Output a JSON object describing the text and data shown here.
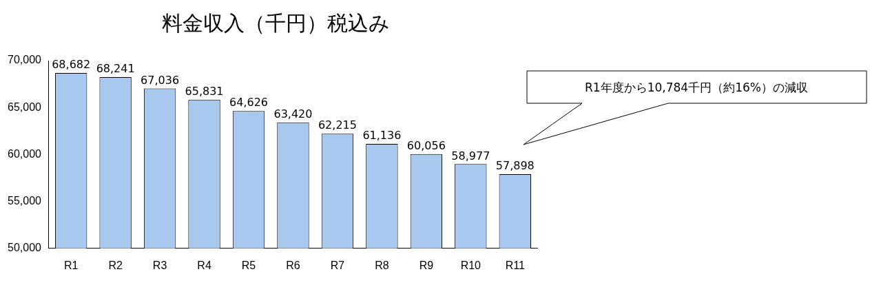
{
  "chart_data": {
    "type": "bar",
    "title": "料金収入（千円）税込み",
    "categories": [
      "R1",
      "R2",
      "R3",
      "R4",
      "R5",
      "R6",
      "R7",
      "R8",
      "R9",
      "R10",
      "R11"
    ],
    "values": [
      68682,
      68241,
      67036,
      65831,
      64626,
      63420,
      62215,
      61136,
      60056,
      58977,
      57898
    ],
    "color": "#a8c8ee",
    "ylim": [
      50000,
      70000
    ],
    "yticks": [
      {
        "value": 50000,
        "label": "50,000"
      },
      {
        "value": 55000,
        "label": "55,000"
      },
      {
        "value": 60000,
        "label": "60,000"
      },
      {
        "value": 65000,
        "label": "65,000"
      },
      {
        "value": 70000,
        "label": "70,000"
      }
    ],
    "value_labels": [
      "68,682",
      "68,241",
      "67,036",
      "65,831",
      "64,626",
      "63,420",
      "62,215",
      "61,136",
      "60,056",
      "58,977",
      "57,898"
    ],
    "grid": false,
    "annotations": [
      "R1年度から10,784千円（約16%）の減収"
    ]
  }
}
